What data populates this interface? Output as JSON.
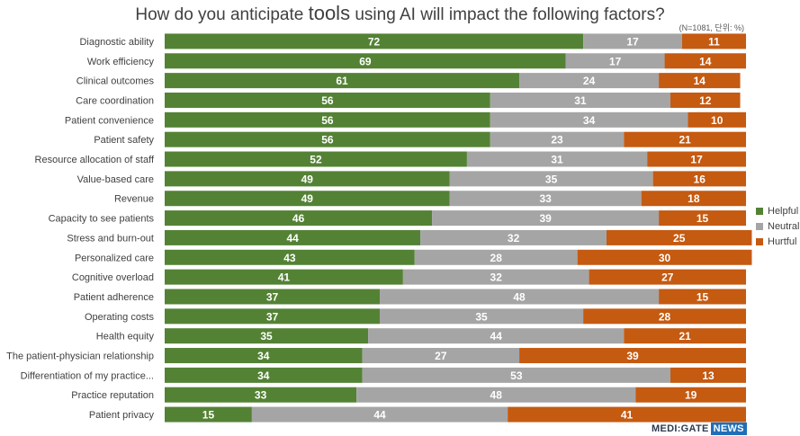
{
  "chart_data": {
    "type": "bar",
    "orientation": "horizontal",
    "stacked": true,
    "title_parts": [
      "How do you anticipate ",
      "tools",
      " using AI will impact the following factors?"
    ],
    "subtitle": "(N=1081, 단위: %)",
    "categories": [
      "Diagnostic ability",
      "Work efficiency",
      "Clinical outcomes",
      "Care coordination",
      "Patient convenience",
      "Patient safety",
      "Resource allocation of staff",
      "Value-based care",
      "Revenue",
      "Capacity to see patients",
      "Stress and burn-out",
      "Personalized care",
      "Cognitive overload",
      "Patient adherence",
      "Operating costs",
      "Health equity",
      "The patient-physician relationship",
      "Differentiation of my practice...",
      "Practice reputation",
      "Patient privacy"
    ],
    "series": [
      {
        "name": "Helpful",
        "color": "#548235",
        "values": [
          72,
          69,
          61,
          56,
          56,
          56,
          52,
          49,
          49,
          46,
          44,
          43,
          41,
          37,
          37,
          35,
          34,
          34,
          33,
          15
        ]
      },
      {
        "name": "Neutral",
        "color": "#a5a5a5",
        "values": [
          17,
          17,
          24,
          31,
          34,
          23,
          31,
          35,
          33,
          39,
          32,
          28,
          32,
          48,
          35,
          44,
          27,
          53,
          48,
          44
        ]
      },
      {
        "name": "Hurtful",
        "color": "#c55a11",
        "values": [
          11,
          14,
          14,
          12,
          10,
          21,
          17,
          16,
          18,
          15,
          25,
          30,
          27,
          15,
          28,
          21,
          39,
          13,
          19,
          41
        ]
      }
    ],
    "xlim": [
      0,
      100
    ],
    "grid": false,
    "legend_position": "right"
  },
  "logo": {
    "brand": "MEDI:GATE",
    "news": "NEWS"
  }
}
